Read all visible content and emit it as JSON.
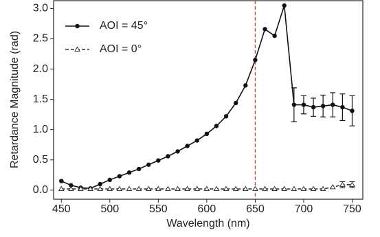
{
  "chart_data": {
    "type": "line",
    "x_label": "Wavelength (nm)",
    "y_label": "Retardance Magnitude (rad)",
    "x": [
      450,
      460,
      470,
      480,
      490,
      500,
      510,
      520,
      530,
      540,
      550,
      560,
      570,
      580,
      590,
      600,
      610,
      620,
      630,
      640,
      650,
      660,
      670,
      680,
      690,
      700,
      710,
      720,
      730,
      740,
      750
    ],
    "series": [
      {
        "name": "AOI = 45°",
        "color": "#111111",
        "marker": "circle",
        "dash": false,
        "values": [
          0.15,
          0.08,
          0.04,
          0.03,
          0.1,
          0.17,
          0.23,
          0.29,
          0.35,
          0.42,
          0.49,
          0.56,
          0.64,
          0.73,
          0.82,
          0.93,
          1.06,
          1.22,
          1.44,
          1.73,
          2.15,
          2.66,
          2.55,
          3.05,
          1.41,
          1.41,
          1.37,
          1.39,
          1.41,
          1.37,
          1.31
        ],
        "errors": [
          null,
          null,
          null,
          null,
          null,
          null,
          null,
          null,
          null,
          null,
          null,
          null,
          null,
          null,
          null,
          null,
          null,
          null,
          null,
          null,
          null,
          null,
          null,
          null,
          0.28,
          0.15,
          0.15,
          0.18,
          0.2,
          0.22,
          0.25
        ]
      },
      {
        "name": "AOI = 0°",
        "color": "#333333",
        "marker": "triangle",
        "dash": true,
        "values": [
          0.02,
          0.02,
          0.02,
          0.02,
          0.02,
          0.02,
          0.02,
          0.02,
          0.02,
          0.02,
          0.02,
          0.02,
          0.02,
          0.02,
          0.02,
          0.02,
          0.02,
          0.02,
          0.02,
          0.02,
          0.02,
          0.02,
          0.02,
          0.02,
          0.02,
          0.02,
          0.02,
          0.02,
          0.05,
          0.09,
          0.09
        ],
        "errors": [
          null,
          null,
          null,
          null,
          null,
          null,
          null,
          null,
          null,
          null,
          null,
          null,
          null,
          null,
          null,
          null,
          null,
          null,
          null,
          null,
          null,
          null,
          null,
          null,
          null,
          null,
          null,
          null,
          null,
          0.05,
          0.05
        ]
      }
    ],
    "vline": {
      "x": 650,
      "color": "#e03a3a"
    },
    "xlim": [
      442,
      761
    ],
    "ylim": [
      -0.15,
      3.13
    ],
    "xticks": [
      450,
      500,
      550,
      600,
      650,
      700,
      750
    ],
    "yticks": [
      {
        "value": 0,
        "label": "0.0"
      },
      {
        "value": 0.5,
        "label": "0.5"
      },
      {
        "value": 1,
        "label": "1.0"
      },
      {
        "value": 1.5,
        "label": "1.5"
      },
      {
        "value": 2,
        "label": "2.0"
      },
      {
        "value": 2.5,
        "label": "2.5"
      },
      {
        "value": 3,
        "label": "3.0"
      }
    ],
    "legend": "upper left"
  }
}
